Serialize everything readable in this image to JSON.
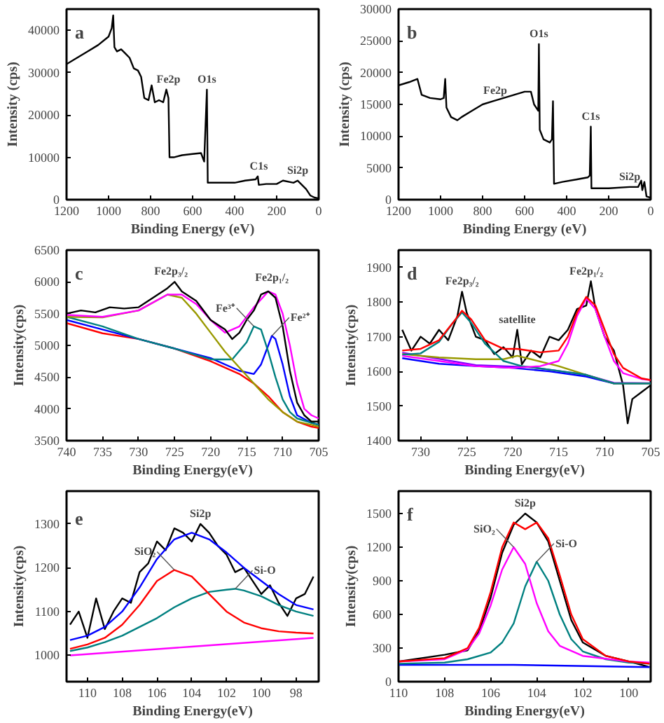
{
  "chart_data": [
    {
      "type": "line",
      "title": "a",
      "xlabel": "Binding Energy (eV)",
      "ylabel": "Intensity (cps)",
      "xlim": [
        1200,
        0
      ],
      "ylim": [
        0,
        45000
      ],
      "xticks": [
        1200,
        1000,
        800,
        600,
        400,
        200,
        0
      ],
      "yticks": [
        0,
        10000,
        20000,
        30000,
        40000
      ],
      "series": [
        {
          "color": "#000000",
          "x": [
            1200,
            1150,
            1100,
            1050,
            1000,
            985,
            978,
            972,
            960,
            940,
            920,
            900,
            880,
            860,
            845,
            830,
            810,
            795,
            780,
            760,
            740,
            725,
            715,
            710,
            690,
            650,
            600,
            560,
            545,
            532,
            528,
            500,
            400,
            350,
            300,
            290,
            285,
            250,
            200,
            170,
            120,
            100,
            80,
            60,
            40,
            20,
            0
          ],
          "values": [
            32000,
            33500,
            35000,
            36500,
            38500,
            40500,
            43500,
            36000,
            35000,
            35500,
            34500,
            33500,
            31000,
            30500,
            29000,
            24000,
            23500,
            27000,
            23000,
            23500,
            23000,
            26000,
            24000,
            10000,
            10000,
            10500,
            10800,
            11000,
            9000,
            26000,
            4000,
            4000,
            4000,
            4500,
            4800,
            5500,
            3500,
            3700,
            3700,
            4500,
            4000,
            4500,
            3500,
            2500,
            1000,
            500,
            300
          ]
        }
      ],
      "annotations": [
        {
          "text": "Fe2p",
          "x": 715,
          "y": 26000
        },
        {
          "text": "O1s",
          "x": 532,
          "y": 26000
        },
        {
          "text": "C1s",
          "x": 285,
          "y": 5500
        },
        {
          "text": "Si2p",
          "x": 100,
          "y": 4500
        }
      ]
    },
    {
      "type": "line",
      "title": "b",
      "xlabel": "Binding Energy (eV)",
      "ylabel": "Intensity (cps)",
      "xlim": [
        1200,
        0
      ],
      "ylim": [
        0,
        30000
      ],
      "xticks": [
        1200,
        1000,
        800,
        600,
        400,
        200,
        0
      ],
      "yticks": [
        0,
        5000,
        10000,
        15000,
        20000,
        25000,
        30000
      ],
      "series": [
        {
          "color": "#000000",
          "x": [
            1200,
            1150,
            1110,
            1090,
            1050,
            1000,
            985,
            978,
            972,
            950,
            920,
            900,
            850,
            800,
            750,
            700,
            650,
            600,
            570,
            555,
            535,
            532,
            528,
            510,
            480,
            470,
            465,
            460,
            420,
            350,
            300,
            290,
            285,
            282,
            200,
            100,
            60,
            45,
            40,
            30,
            20,
            0
          ],
          "values": [
            18000,
            18500,
            19000,
            16500,
            16000,
            15800,
            16000,
            19000,
            14500,
            13000,
            12500,
            13000,
            14000,
            15000,
            15500,
            16000,
            16500,
            17000,
            17000,
            15000,
            14000,
            24500,
            11000,
            9500,
            9000,
            9500,
            15500,
            2500,
            2800,
            3200,
            3500,
            3800,
            11500,
            1800,
            1800,
            2000,
            2000,
            3000,
            1500,
            2800,
            500,
            300
          ]
        }
      ],
      "annotations": [
        {
          "text": "Fe2p",
          "x": 740,
          "y": 15500
        },
        {
          "text": "O1s",
          "x": 532,
          "y": 24500
        },
        {
          "text": "C1s",
          "x": 285,
          "y": 11500
        },
        {
          "text": "Si2p",
          "x": 100,
          "y": 2000
        }
      ]
    },
    {
      "type": "line",
      "title": "c",
      "xlabel": "Binding Energy(eV)",
      "ylabel": "Intensity(cps)",
      "xlim": [
        740,
        705
      ],
      "ylim": [
        3500,
        6500
      ],
      "xticks": [
        740,
        735,
        730,
        725,
        720,
        715,
        710,
        705
      ],
      "yticks": [
        3500,
        4000,
        4500,
        5000,
        5500,
        6000,
        6500
      ],
      "series": [
        {
          "color": "#ff0000",
          "x": [
            740,
            735,
            730,
            725,
            720,
            716,
            714,
            712,
            710,
            708,
            706,
            705
          ],
          "values": [
            5350,
            5190,
            5100,
            4950,
            4750,
            4550,
            4400,
            4200,
            3950,
            3800,
            3720,
            3700
          ]
        },
        {
          "color": "#0000ff",
          "x": [
            740,
            735,
            730,
            725,
            720,
            716,
            714,
            713,
            712,
            711.5,
            711,
            710,
            709,
            708,
            706,
            705
          ],
          "values": [
            5400,
            5250,
            5100,
            4950,
            4800,
            4600,
            4550,
            4700,
            5000,
            5150,
            5100,
            4700,
            4200,
            3900,
            3780,
            3750
          ]
        },
        {
          "color": "#008080",
          "x": [
            740,
            735,
            730,
            725,
            720,
            717,
            715,
            714,
            713,
            712,
            711,
            710,
            709,
            708,
            706,
            705
          ],
          "values": [
            5450,
            5300,
            5100,
            4950,
            4780,
            4780,
            5050,
            5300,
            5250,
            4900,
            4500,
            4150,
            3950,
            3850,
            3780,
            3750
          ]
        },
        {
          "color": "#999900",
          "x": [
            740,
            735,
            730,
            726,
            724,
            722,
            720,
            718,
            716,
            714,
            712,
            710,
            708,
            706,
            705
          ],
          "values": [
            5450,
            5440,
            5550,
            5800,
            5750,
            5500,
            5200,
            4900,
            4650,
            4400,
            4150,
            3950,
            3800,
            3750,
            3720
          ]
        },
        {
          "color": "#ff00ff",
          "x": [
            740,
            735,
            730,
            726,
            724,
            722,
            720,
            718,
            716,
            714,
            712,
            711,
            710,
            709,
            708,
            707,
            706,
            705
          ],
          "values": [
            5480,
            5450,
            5550,
            5800,
            5800,
            5650,
            5400,
            5200,
            5300,
            5600,
            5850,
            5800,
            5500,
            5000,
            4400,
            4000,
            3900,
            3850
          ]
        },
        {
          "color": "#000000",
          "x": [
            740,
            738,
            736,
            734,
            732,
            730,
            728,
            726,
            725,
            724,
            722,
            720,
            718,
            717,
            716,
            715,
            714,
            713,
            712,
            711,
            710,
            709,
            708,
            707,
            706,
            705
          ],
          "values": [
            5500,
            5550,
            5520,
            5600,
            5580,
            5600,
            5750,
            5900,
            6000,
            5850,
            5700,
            5400,
            5250,
            5100,
            5200,
            5400,
            5550,
            5800,
            5850,
            5750,
            5300,
            4600,
            4100,
            3900,
            3800,
            3800
          ]
        }
      ],
      "annotations": [
        {
          "text": "Fe2p₃/₂",
          "x": 725.5,
          "y": 6000
        },
        {
          "text": "Fe2p₁/₂",
          "x": 711.5,
          "y": 5900
        },
        {
          "text": "Fe³⁺",
          "x": 714,
          "y": 5300
        },
        {
          "text": "Fe²⁺",
          "x": 711.5,
          "y": 5150
        }
      ]
    },
    {
      "type": "line",
      "title": "d",
      "xlabel": "Binding Energy(eV)",
      "ylabel": "Intensity(cps)",
      "xlim": [
        732.4,
        705
      ],
      "ylim": [
        1400,
        1950
      ],
      "xticks": [
        730,
        725,
        720,
        715,
        710,
        705
      ],
      "yticks": [
        1400,
        1500,
        1600,
        1700,
        1800,
        1900
      ],
      "series": [
        {
          "color": "#000000",
          "x": [
            732,
            731,
            730,
            729,
            728,
            727,
            726,
            725.5,
            725,
            724,
            723,
            722,
            721,
            720,
            719.5,
            719,
            718,
            717,
            716,
            715,
            714,
            713,
            712,
            711.5,
            711,
            710,
            709,
            708,
            707.5,
            707,
            706,
            705
          ],
          "values": [
            1720,
            1660,
            1700,
            1680,
            1720,
            1690,
            1760,
            1830,
            1770,
            1700,
            1690,
            1650,
            1670,
            1640,
            1720,
            1620,
            1660,
            1640,
            1700,
            1690,
            1720,
            1780,
            1790,
            1860,
            1780,
            1700,
            1660,
            1560,
            1450,
            1520,
            1540,
            1560
          ]
        },
        {
          "color": "#8000ff",
          "x": [
            732,
            724,
            718,
            712,
            709,
            705
          ],
          "values": [
            1654,
            1618,
            1612,
            1590,
            1567,
            1566
          ]
        },
        {
          "color": "#0000ff",
          "x": [
            732,
            728,
            724,
            720,
            716,
            712,
            709,
            705
          ],
          "values": [
            1638,
            1622,
            1615,
            1610,
            1600,
            1585,
            1565,
            1565
          ]
        },
        {
          "color": "#999900",
          "x": [
            732,
            728,
            724,
            721,
            719.5,
            718,
            715,
            712,
            709,
            705
          ],
          "values": [
            1650,
            1640,
            1635,
            1635,
            1645,
            1635,
            1615,
            1590,
            1565,
            1565
          ]
        },
        {
          "color": "#008080",
          "x": [
            732,
            730,
            728,
            726.5,
            725.5,
            724.5,
            723,
            721,
            719,
            716,
            712,
            709,
            705
          ],
          "values": [
            1648,
            1652,
            1685,
            1740,
            1770,
            1740,
            1680,
            1630,
            1615,
            1605,
            1590,
            1565,
            1565
          ]
        },
        {
          "color": "#ff00ff",
          "x": [
            732,
            728,
            724,
            720,
            717,
            715,
            714,
            713,
            712,
            711,
            710,
            709,
            708,
            706,
            705
          ],
          "values": [
            1645,
            1630,
            1615,
            1610,
            1615,
            1630,
            1680,
            1760,
            1810,
            1780,
            1700,
            1630,
            1595,
            1578,
            1575
          ]
        },
        {
          "color": "#ff0000",
          "x": [
            732,
            730,
            728,
            726.5,
            725.5,
            724.5,
            723,
            721,
            719.5,
            717,
            715,
            714,
            713,
            712,
            711,
            710,
            709,
            708,
            706,
            705
          ],
          "values": [
            1660,
            1665,
            1690,
            1740,
            1775,
            1750,
            1690,
            1665,
            1665,
            1655,
            1660,
            1700,
            1770,
            1815,
            1790,
            1720,
            1650,
            1610,
            1580,
            1575
          ]
        }
      ],
      "annotations": [
        {
          "text": "Fe2p₃/₂",
          "x": 725.5,
          "y": 1830
        },
        {
          "text": "Fe2p₁/₂",
          "x": 712,
          "y": 1860
        },
        {
          "text": "satellite",
          "x": 719.5,
          "y": 1720
        }
      ]
    },
    {
      "type": "line",
      "title": "e",
      "xlabel": "Binding Energy(eV)",
      "ylabel": "Intensity(cps)",
      "xlim": [
        111.2,
        96.7
      ],
      "ylim": [
        940,
        1375
      ],
      "xticks": [
        110,
        108,
        106,
        104,
        102,
        100,
        98
      ],
      "yticks": [
        1000,
        1100,
        1200,
        1300
      ],
      "series": [
        {
          "color": "#000000",
          "x": [
            111,
            110.5,
            110,
            109.5,
            109,
            108.5,
            108,
            107.5,
            107,
            106.5,
            106,
            105.5,
            105,
            104.5,
            104,
            103.5,
            103,
            102.5,
            102,
            101.5,
            101,
            100.5,
            100,
            99.5,
            99,
            98.5,
            98,
            97.5,
            97
          ],
          "values": [
            1070,
            1100,
            1040,
            1130,
            1060,
            1100,
            1130,
            1120,
            1190,
            1210,
            1260,
            1240,
            1290,
            1280,
            1260,
            1300,
            1280,
            1250,
            1230,
            1190,
            1200,
            1170,
            1140,
            1160,
            1120,
            1090,
            1130,
            1140,
            1180
          ]
        },
        {
          "color": "#ff00ff",
          "x": [
            111,
            104,
            97
          ],
          "values": [
            1000,
            1020,
            1040
          ]
        },
        {
          "color": "#008080",
          "x": [
            111,
            110,
            109,
            108,
            107,
            106,
            105,
            104,
            103,
            102,
            101.5,
            101,
            100,
            99,
            98,
            97
          ],
          "values": [
            1010,
            1018,
            1030,
            1045,
            1065,
            1085,
            1110,
            1130,
            1145,
            1150,
            1152,
            1148,
            1135,
            1115,
            1100,
            1090
          ]
        },
        {
          "color": "#ff0000",
          "x": [
            111,
            110,
            109,
            108,
            107,
            106,
            105,
            104,
            103,
            102,
            101,
            100,
            99,
            98,
            97
          ],
          "values": [
            1015,
            1025,
            1040,
            1070,
            1115,
            1170,
            1195,
            1180,
            1140,
            1100,
            1075,
            1062,
            1055,
            1052,
            1050
          ]
        },
        {
          "color": "#0000ff",
          "x": [
            111,
            110,
            109,
            108,
            107,
            106,
            105,
            104,
            103,
            102,
            101,
            100,
            99,
            98,
            97
          ],
          "values": [
            1035,
            1045,
            1065,
            1100,
            1155,
            1220,
            1265,
            1280,
            1265,
            1235,
            1200,
            1170,
            1140,
            1115,
            1105
          ]
        }
      ],
      "annotations": [
        {
          "text": "Si2p",
          "x": 103.5,
          "y": 1300
        },
        {
          "text": "SiO₂",
          "x": 105,
          "y": 1195
        },
        {
          "text": "Si-O",
          "x": 101.5,
          "y": 1152
        }
      ]
    },
    {
      "type": "line",
      "title": "f",
      "xlabel": "Binding Energy(eV)",
      "ylabel": "Intensity(cps)",
      "xlim": [
        110,
        99.05
      ],
      "ylim": [
        0,
        1700
      ],
      "xticks": [
        110,
        108,
        106,
        104,
        102,
        100
      ],
      "yticks": [
        0,
        300,
        600,
        900,
        1200,
        1500
      ],
      "series": [
        {
          "color": "#000000",
          "x": [
            110,
            108,
            107,
            106.5,
            106,
            105.5,
            105,
            104.5,
            104,
            103.5,
            103,
            102.5,
            102,
            101,
            100,
            99.1
          ],
          "values": [
            180,
            240,
            280,
            450,
            750,
            1150,
            1400,
            1500,
            1420,
            1250,
            900,
            550,
            350,
            230,
            180,
            130
          ]
        },
        {
          "color": "#0000ff",
          "x": [
            110,
            105,
            99.1
          ],
          "values": [
            150,
            150,
            130
          ]
        },
        {
          "color": "#008080",
          "x": [
            110,
            108,
            107,
            106,
            105.5,
            105,
            104.5,
            104,
            103.5,
            103,
            102.5,
            102,
            101,
            100,
            99.1
          ],
          "values": [
            160,
            170,
            200,
            260,
            350,
            520,
            850,
            1070,
            900,
            600,
            380,
            270,
            200,
            170,
            160
          ]
        },
        {
          "color": "#ff00ff",
          "x": [
            110,
            108,
            107,
            106.5,
            106,
            105.5,
            105,
            104.5,
            104,
            103.5,
            103,
            102,
            100,
            99.1
          ],
          "values": [
            180,
            200,
            290,
            430,
            680,
            1000,
            1200,
            1050,
            700,
            450,
            320,
            230,
            180,
            170
          ]
        },
        {
          "color": "#ff0000",
          "x": [
            110,
            108,
            107,
            106.5,
            106,
            105.5,
            105,
            104.5,
            104,
            103.5,
            103,
            102.5,
            102,
            101,
            100,
            99.1
          ],
          "values": [
            180,
            210,
            300,
            480,
            800,
            1200,
            1420,
            1360,
            1420,
            1280,
            950,
            600,
            380,
            230,
            180,
            160
          ]
        }
      ],
      "annotations": [
        {
          "text": "Si2p",
          "x": 104.5,
          "y": 1500
        },
        {
          "text": "SiO₂",
          "x": 105,
          "y": 1200
        },
        {
          "text": "Si-O",
          "x": 104,
          "y": 1070
        }
      ]
    }
  ]
}
